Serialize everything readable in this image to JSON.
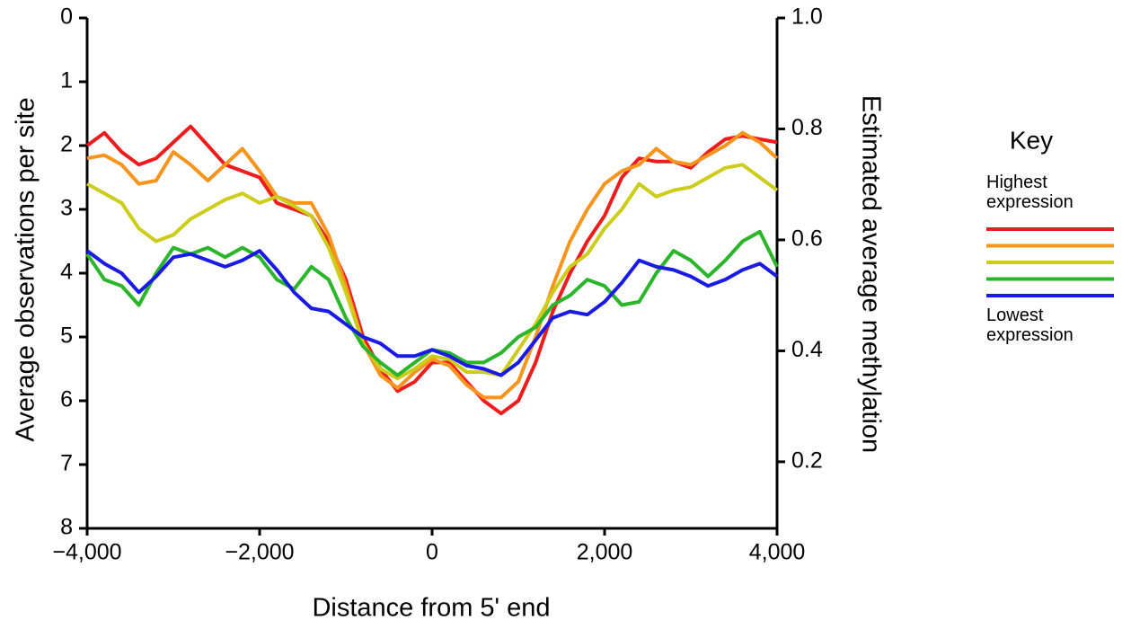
{
  "chart_data": {
    "type": "line",
    "x_label": "Distance from 5' end",
    "y_label": "Average observations per site",
    "y2_label": "Estimated average methylation",
    "legend_title": "Key",
    "legend_top_label": "Highest expression",
    "legend_bottom_label": "Lowest expression",
    "legend_position": "right",
    "y_inverted": true,
    "xlim": [
      -4000,
      4000
    ],
    "xticks": [
      {
        "value": -4000,
        "label": "−4,000"
      },
      {
        "value": -2000,
        "label": "−2,000"
      },
      0,
      {
        "value": 2000,
        "label": "2,000"
      },
      {
        "value": 4000,
        "label": "4,000"
      }
    ],
    "ylim": [
      0,
      8
    ],
    "yticks": [
      0,
      1,
      2,
      3,
      4,
      5,
      6,
      7,
      8
    ],
    "y2lim": [
      0.08,
      1.0
    ],
    "y2ticks": [
      0.2,
      0.4,
      0.6,
      0.8,
      {
        "value": 1.0,
        "label": "1.0"
      }
    ],
    "x": [
      -4000,
      -3800,
      -3600,
      -3400,
      -3200,
      -3000,
      -2800,
      -2600,
      -2400,
      -2200,
      -2000,
      -1800,
      -1600,
      -1400,
      -1200,
      -1000,
      -800,
      -600,
      -400,
      -200,
      0,
      200,
      400,
      600,
      800,
      1000,
      1200,
      1400,
      1600,
      1800,
      2000,
      2200,
      2400,
      2600,
      2800,
      3000,
      3200,
      3400,
      3600,
      3800,
      4000
    ],
    "series": [
      {
        "color": "#ee1c1c",
        "values": [
          2.0,
          1.8,
          2.1,
          2.3,
          2.2,
          1.95,
          1.7,
          2.0,
          2.3,
          2.4,
          2.5,
          2.9,
          3.0,
          3.1,
          3.5,
          4.1,
          5.0,
          5.5,
          5.85,
          5.7,
          5.4,
          5.4,
          5.7,
          6.0,
          6.2,
          6.0,
          5.4,
          4.6,
          4.0,
          3.5,
          3.1,
          2.5,
          2.2,
          2.25,
          2.25,
          2.35,
          2.1,
          1.9,
          1.85,
          1.9,
          1.95
        ]
      },
      {
        "color": "#f7941d",
        "values": [
          2.2,
          2.15,
          2.3,
          2.6,
          2.55,
          2.1,
          2.3,
          2.55,
          2.3,
          2.05,
          2.4,
          2.8,
          2.9,
          2.9,
          3.4,
          4.2,
          5.1,
          5.6,
          5.8,
          5.55,
          5.35,
          5.45,
          5.75,
          5.95,
          5.95,
          5.7,
          5.0,
          4.2,
          3.5,
          3.0,
          2.6,
          2.4,
          2.3,
          2.05,
          2.25,
          2.3,
          2.15,
          2.0,
          1.8,
          1.95,
          2.2
        ]
      },
      {
        "color": "#cccc1a",
        "values": [
          2.6,
          2.75,
          2.9,
          3.3,
          3.5,
          3.4,
          3.15,
          3.0,
          2.85,
          2.75,
          2.9,
          2.8,
          2.95,
          3.1,
          3.6,
          4.3,
          5.1,
          5.5,
          5.65,
          5.5,
          5.3,
          5.35,
          5.55,
          5.55,
          5.6,
          5.2,
          4.8,
          4.3,
          3.9,
          3.7,
          3.3,
          3.0,
          2.6,
          2.8,
          2.7,
          2.65,
          2.5,
          2.35,
          2.3,
          2.5,
          2.7
        ]
      },
      {
        "color": "#2ab52a",
        "values": [
          3.7,
          4.1,
          4.2,
          4.5,
          4.0,
          3.6,
          3.7,
          3.6,
          3.75,
          3.6,
          3.75,
          4.1,
          4.25,
          3.9,
          4.1,
          4.7,
          5.15,
          5.4,
          5.6,
          5.4,
          5.2,
          5.25,
          5.4,
          5.4,
          5.25,
          5.0,
          4.85,
          4.5,
          4.35,
          4.1,
          4.2,
          4.5,
          4.45,
          4.0,
          3.65,
          3.8,
          4.05,
          3.8,
          3.5,
          3.35,
          3.9
        ]
      },
      {
        "color": "#1a1ae6",
        "values": [
          3.65,
          3.85,
          4.0,
          4.3,
          4.05,
          3.75,
          3.7,
          3.8,
          3.9,
          3.8,
          3.65,
          3.95,
          4.3,
          4.55,
          4.6,
          4.8,
          5.0,
          5.1,
          5.3,
          5.3,
          5.2,
          5.3,
          5.45,
          5.5,
          5.6,
          5.4,
          5.05,
          4.7,
          4.6,
          4.65,
          4.45,
          4.15,
          3.8,
          3.9,
          3.95,
          4.05,
          4.2,
          4.1,
          3.95,
          3.85,
          4.05
        ]
      }
    ]
  }
}
